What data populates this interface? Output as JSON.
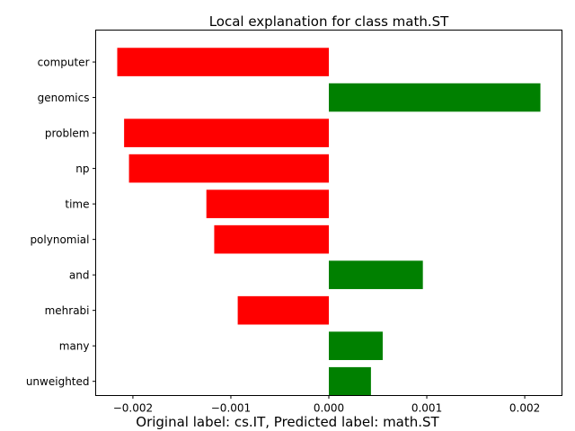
{
  "chart_data": {
    "type": "bar",
    "orientation": "horizontal",
    "title": "Local explanation for class math.ST",
    "caption": "Original label: cs.IT, Predicted label: math.ST",
    "categories": [
      "computer",
      "genomics",
      "problem",
      "np",
      "time",
      "polynomial",
      "and",
      "mehrabi",
      "many",
      "unweighted"
    ],
    "values": [
      -0.00216,
      0.00216,
      -0.00209,
      -0.00204,
      -0.00125,
      -0.00117,
      0.00096,
      -0.00093,
      0.00055,
      0.00043
    ],
    "xlim": [
      -0.00238,
      0.00238
    ],
    "xticks": [
      -0.002,
      -0.001,
      0.0,
      0.001,
      0.002
    ],
    "xtick_labels": [
      "−0.002",
      "−0.001",
      "0.000",
      "0.001",
      "0.002"
    ],
    "grid": false,
    "colors": {
      "positive": "#008000",
      "negative": "#ff0000"
    }
  }
}
